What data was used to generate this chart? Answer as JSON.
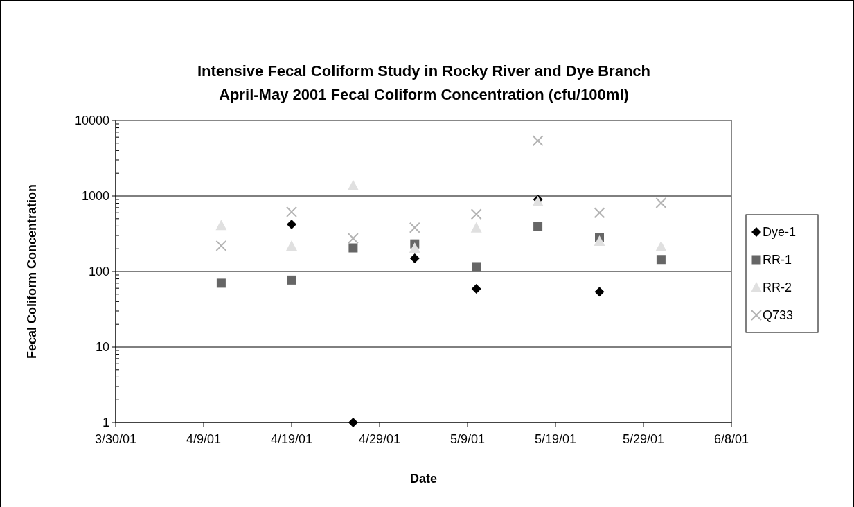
{
  "chart_data": {
    "type": "scatter",
    "title": "Intensive Fecal Coliform Study in Rocky River and Dye Branch\nApril-May 2001 Fecal Coliform Concentration (cfu/100ml)",
    "xlabel": "Date",
    "ylabel": "Fecal Coliform Concentration",
    "x": [
      "2001-04-11",
      "2001-04-19",
      "2001-04-26",
      "2001-05-03",
      "2001-05-10",
      "2001-05-17",
      "2001-05-24",
      "2001-05-31"
    ],
    "series": [
      {
        "name": "Dye-1",
        "color": "#000000",
        "marker": "diamond",
        "values": [
          null,
          420,
          1,
          149,
          59,
          900,
          54,
          null
        ]
      },
      {
        "name": "RR-1",
        "color": "#666666",
        "marker": "square",
        "values": [
          70,
          77,
          205,
          232,
          116,
          395,
          282,
          144
        ]
      },
      {
        "name": "RR-2",
        "color": "#e0e0e0",
        "marker": "triangle",
        "values": [
          410,
          219,
          1380,
          205,
          380,
          850,
          253,
          215
        ]
      },
      {
        "name": "Q733",
        "color": "#b3b3b3",
        "marker": "cross",
        "values": [
          219,
          617,
          275,
          380,
          575,
          5400,
          600,
          810
        ]
      }
    ],
    "log": "y",
    "ylim": [
      1,
      10000
    ],
    "yticks": [
      1,
      10,
      100,
      1000,
      10000
    ],
    "xlim": [
      "2001-03-30",
      "2001-06-08"
    ],
    "xticks": [
      {
        "value": "2001-03-30",
        "label": "3/30/01"
      },
      {
        "value": "2001-04-09",
        "label": "4/9/01"
      },
      {
        "value": "2001-04-19",
        "label": "4/19/01"
      },
      {
        "value": "2001-04-29",
        "label": "4/29/01"
      },
      {
        "value": "2001-05-09",
        "label": "5/9/01"
      },
      {
        "value": "2001-05-19",
        "label": "5/19/01"
      },
      {
        "value": "2001-05-29",
        "label": "5/29/01"
      },
      {
        "value": "2001-06-08",
        "label": "6/8/01"
      }
    ],
    "grid": "y",
    "legend": "right"
  }
}
